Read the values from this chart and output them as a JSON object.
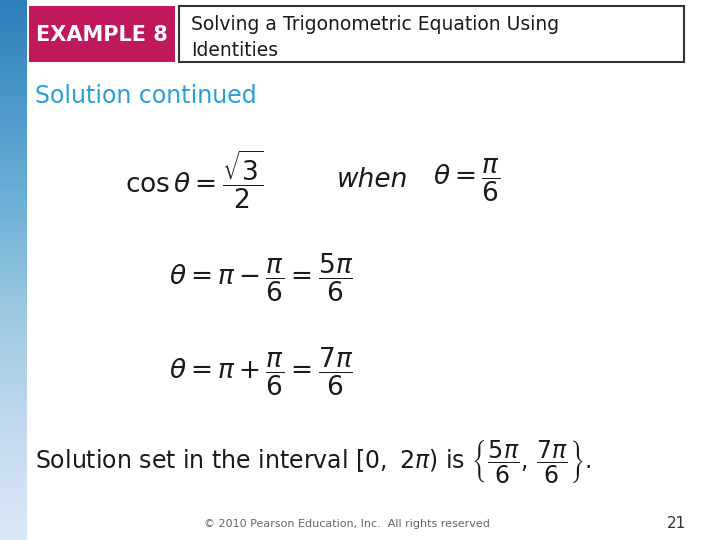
{
  "bg_color": "#ffffff",
  "header_box_color": "#c0185c",
  "header_text_color": "#ffffff",
  "header_box_text": "EXAMPLE 8",
  "title_line1": "Solving a Trigonometric Equation Using",
  "title_line2": "Identities",
  "title_box_border": "#333333",
  "solution_continued_color": "#2a9fd6",
  "solution_continued_text": "Solution continued",
  "footer_text": "© 2010 Pearson Education, Inc.  All rights reserved",
  "page_number": "21"
}
